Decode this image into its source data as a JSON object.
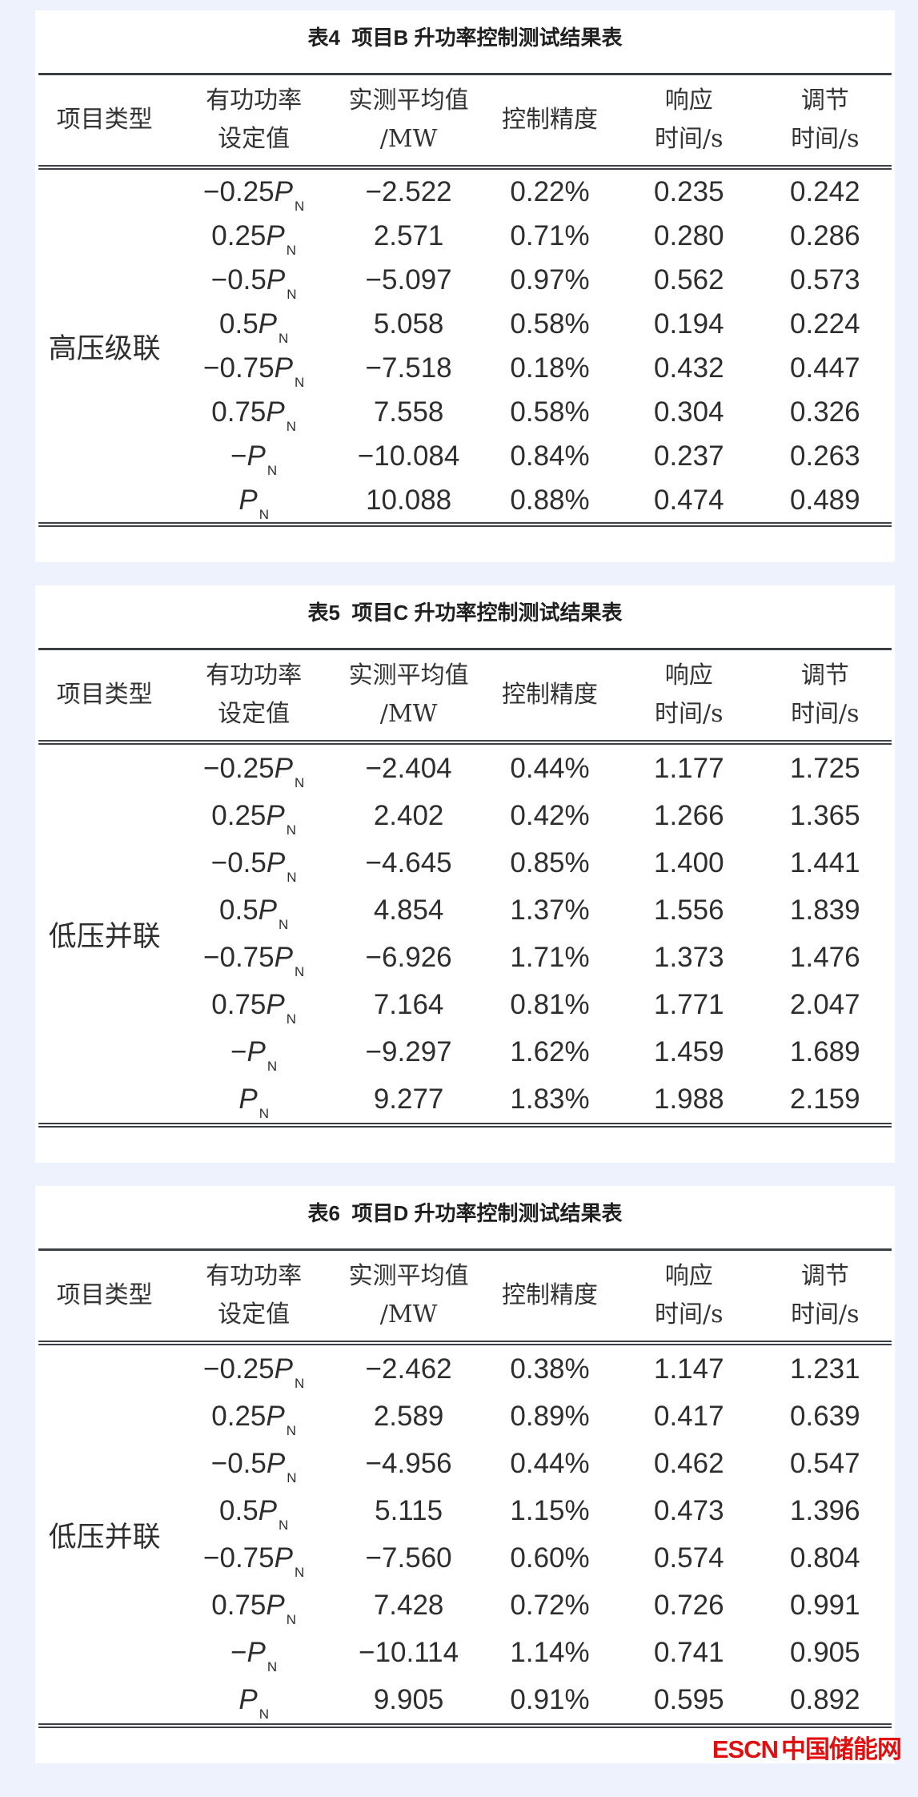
{
  "watermark": {
    "brand": "ESCN",
    "site_name": "中国储能网",
    "color": "#e01010"
  },
  "columns": [
    {
      "key": "project_type",
      "lines": [
        "项目类型"
      ]
    },
    {
      "key": "setpoint",
      "lines": [
        "有功功率",
        "设定值"
      ]
    },
    {
      "key": "measured_avg",
      "lines": [
        "实测平均值",
        "/MW"
      ]
    },
    {
      "key": "accuracy",
      "lines": [
        "控制精度"
      ]
    },
    {
      "key": "response_time",
      "lines": [
        "响应",
        "时间/s"
      ]
    },
    {
      "key": "settling_time",
      "lines": [
        "调节",
        "时间/s"
      ]
    }
  ],
  "tables": [
    {
      "id": "table-4",
      "title": "表4  项目B 升功率控制测试结果表",
      "group_label": "高压级联",
      "rows": [
        [
          "−0.25P_N",
          "−2.522",
          "0.22%",
          "0.235",
          "0.242"
        ],
        [
          "0.25P_N",
          "2.571",
          "0.71%",
          "0.280",
          "0.286"
        ],
        [
          "−0.5P_N",
          "−5.097",
          "0.97%",
          "0.562",
          "0.573"
        ],
        [
          "0.5P_N",
          "5.058",
          "0.58%",
          "0.194",
          "0.224"
        ],
        [
          "−0.75P_N",
          "−7.518",
          "0.18%",
          "0.432",
          "0.447"
        ],
        [
          "0.75P_N",
          "7.558",
          "0.58%",
          "0.304",
          "0.326"
        ],
        [
          "−P_N",
          "−10.084",
          "0.84%",
          "0.237",
          "0.263"
        ],
        [
          "P_N",
          "10.088",
          "0.88%",
          "0.474",
          "0.489"
        ]
      ]
    },
    {
      "id": "table-5",
      "title": "表5  项目C 升功率控制测试结果表",
      "group_label": "低压并联",
      "rows": [
        [
          "−0.25P_N",
          "−2.404",
          "0.44%",
          "1.177",
          "1.725"
        ],
        [
          "0.25P_N",
          "2.402",
          "0.42%",
          "1.266",
          "1.365"
        ],
        [
          "−0.5P_N",
          "−4.645",
          "0.85%",
          "1.400",
          "1.441"
        ],
        [
          "0.5P_N",
          "4.854",
          "1.37%",
          "1.556",
          "1.839"
        ],
        [
          "−0.75P_N",
          "−6.926",
          "1.71%",
          "1.373",
          "1.476"
        ],
        [
          "0.75P_N",
          "7.164",
          "0.81%",
          "1.771",
          "2.047"
        ],
        [
          "−P_N",
          "−9.297",
          "1.62%",
          "1.459",
          "1.689"
        ],
        [
          "P_N",
          "9.277",
          "1.83%",
          "1.988",
          "2.159"
        ]
      ]
    },
    {
      "id": "table-6",
      "title": "表6  项目D 升功率控制测试结果表",
      "group_label": "低压并联",
      "rows": [
        [
          "−0.25P_N",
          "−2.462",
          "0.38%",
          "1.147",
          "1.231"
        ],
        [
          "0.25P_N",
          "2.589",
          "0.89%",
          "0.417",
          "0.639"
        ],
        [
          "−0.5P_N",
          "−4.956",
          "0.44%",
          "0.462",
          "0.547"
        ],
        [
          "0.5P_N",
          "5.115",
          "1.15%",
          "0.473",
          "1.396"
        ],
        [
          "−0.75P_N",
          "−7.560",
          "0.60%",
          "0.574",
          "0.804"
        ],
        [
          "0.75P_N",
          "7.428",
          "0.72%",
          "0.726",
          "0.991"
        ],
        [
          "−P_N",
          "−10.114",
          "1.14%",
          "0.741",
          "0.905"
        ],
        [
          "P_N",
          "9.905",
          "0.91%",
          "0.595",
          "0.892"
        ]
      ]
    }
  ]
}
